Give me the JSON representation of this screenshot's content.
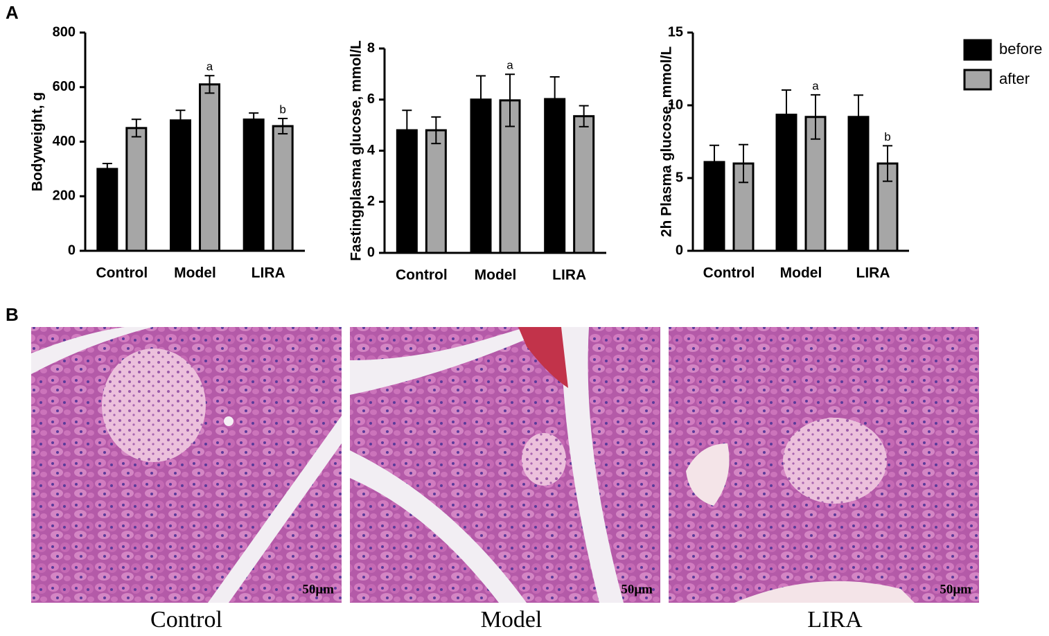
{
  "chart_data": [
    {
      "type": "bar",
      "y_label": "Bodyweight,  g",
      "categories": [
        "Control",
        "Model",
        "LIRA"
      ],
      "series": [
        {
          "name": "before",
          "color": "#000000",
          "values": [
            300,
            478,
            481
          ],
          "errors": [
            20,
            37,
            24
          ]
        },
        {
          "name": "after",
          "color": "#a6a6a6",
          "values": [
            450,
            610,
            457
          ],
          "errors": [
            32,
            32,
            28
          ],
          "annotations": [
            null,
            "a",
            "b"
          ]
        }
      ],
      "ylim": [
        0,
        800
      ],
      "yticks": [
        0,
        200,
        400,
        600,
        800
      ]
    },
    {
      "type": "bar",
      "y_label": "Fastingplasma glucose,  mmol/L",
      "categories": [
        "Control",
        "Model",
        "LIRA"
      ],
      "series": [
        {
          "name": "before",
          "color": "#000000",
          "values": [
            4.8,
            6.0,
            6.02
          ],
          "errors": [
            0.78,
            0.93,
            0.87
          ]
        },
        {
          "name": "after",
          "color": "#a6a6a6",
          "values": [
            4.8,
            5.97,
            5.35
          ],
          "errors": [
            0.52,
            1.02,
            0.41
          ],
          "annotations": [
            null,
            "a",
            null
          ]
        }
      ],
      "ylim": [
        0,
        8
      ],
      "yticks": [
        0,
        2,
        4,
        6,
        8
      ]
    },
    {
      "type": "bar",
      "y_label": "2h Plasma glucose,  mmol/L",
      "categories": [
        "Control",
        "Model",
        "LIRA"
      ],
      "series": [
        {
          "name": "before",
          "color": "#000000",
          "values": [
            6.1,
            9.35,
            9.2
          ],
          "errors": [
            1.15,
            1.7,
            1.5
          ]
        },
        {
          "name": "after",
          "color": "#a6a6a6",
          "values": [
            6.0,
            9.2,
            6.0
          ],
          "errors": [
            1.3,
            1.52,
            1.22
          ],
          "annotations": [
            null,
            "a",
            "b"
          ]
        }
      ],
      "ylim": [
        0,
        15
      ],
      "yticks": [
        0,
        5,
        10,
        15
      ],
      "legend": "right"
    }
  ],
  "figure": {
    "panel_labels": [
      "A",
      "B"
    ],
    "images": [
      {
        "caption": "Control",
        "scale_bar": "50μm"
      },
      {
        "caption": "Model",
        "scale_bar": "50μm"
      },
      {
        "caption": "LIRA",
        "scale_bar": "50μm"
      }
    ]
  }
}
